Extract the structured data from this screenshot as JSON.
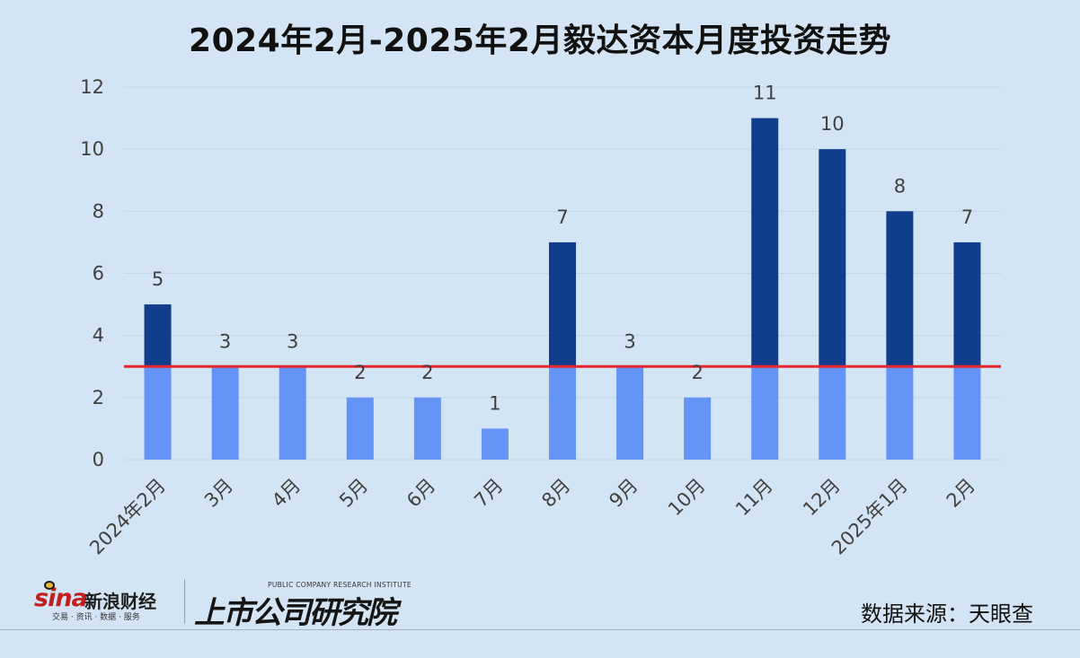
{
  "chart_data": {
    "type": "bar",
    "title": "2024年2月-2025年2月毅达资本月度投资走势",
    "categories": [
      "2024年2月",
      "3月",
      "4月",
      "5月",
      "6月",
      "7月",
      "8月",
      "9月",
      "10月",
      "11月",
      "12月",
      "2025年1月",
      "2月"
    ],
    "values": [
      5,
      3,
      3,
      2,
      2,
      1,
      7,
      3,
      2,
      11,
      10,
      8,
      7
    ],
    "data_labels": [
      "5",
      "3",
      "3",
      "2",
      "2",
      "1",
      "7",
      "3",
      "2",
      "11",
      "10",
      "8",
      "7"
    ],
    "reference_line": 3,
    "ylim": [
      0,
      12
    ],
    "yticks": [
      "0",
      "2",
      "4",
      "6",
      "8",
      "10",
      "12"
    ],
    "xlabel": "",
    "ylabel": "",
    "grid": true,
    "legend": "none",
    "colors": {
      "below_reference": "#6495f6",
      "above_reference": "#113e8c",
      "reference_line": "#e8242c",
      "gridline": "#c2d6e6",
      "axis_text": "#404040"
    }
  },
  "footer": {
    "source": "数据来源：天眼查",
    "sina_logo_text": "sina",
    "sina_brand": "新浪财经",
    "sina_tagline": "交易 · 资讯 · 数据 · 服务",
    "research_logo_en": "PUBLIC COMPANY RESEARCH INSTITUTE",
    "research_logo_cn": "上市公司研究院"
  }
}
